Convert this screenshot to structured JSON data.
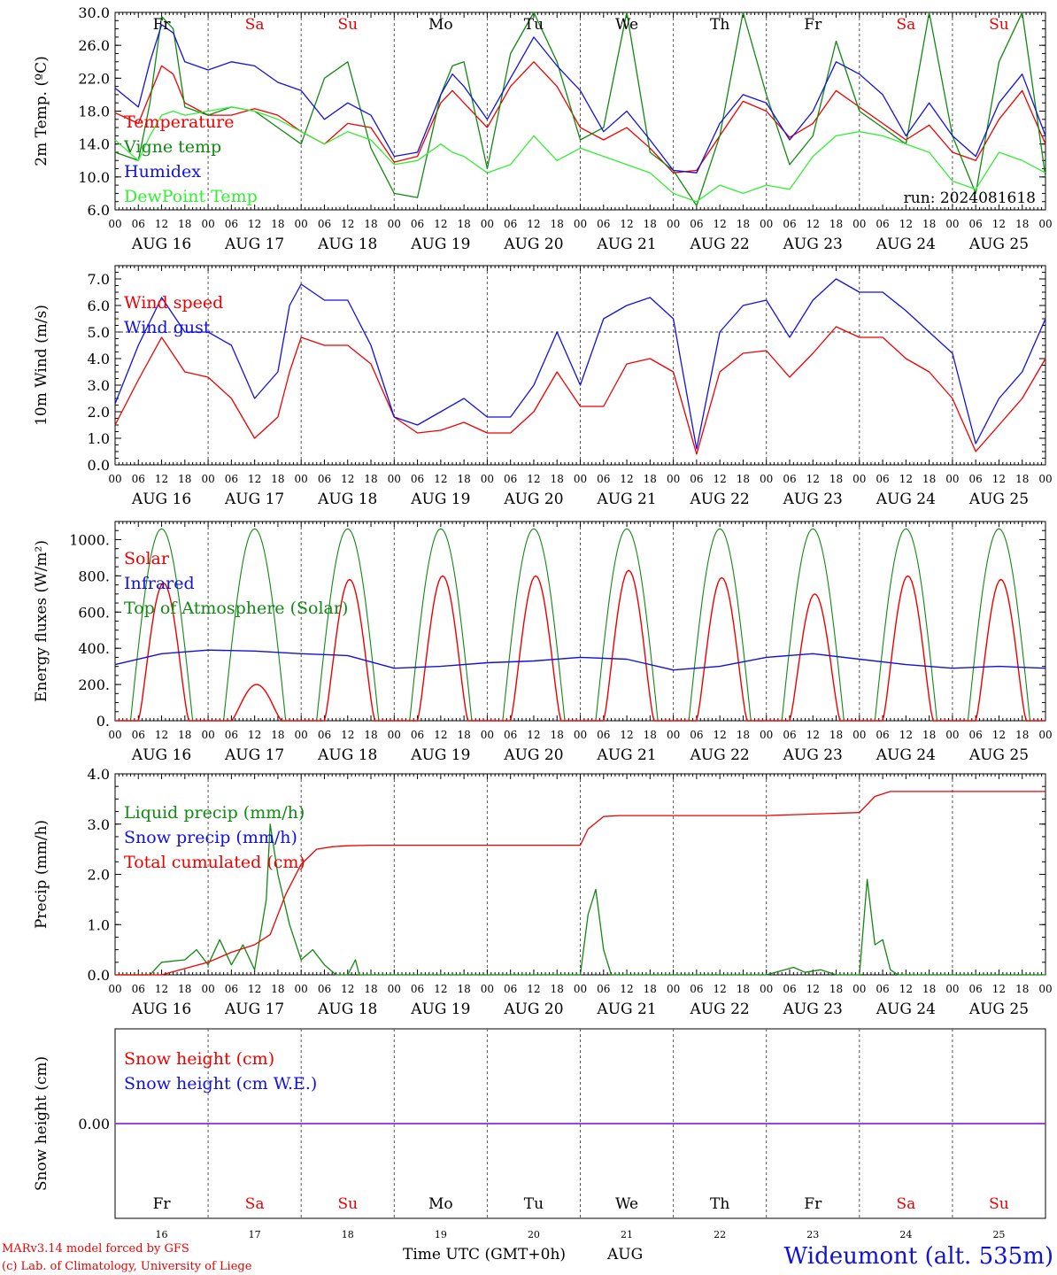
{
  "header": {
    "footer_left_1": "MARv3.14 model forced by GFS",
    "footer_left_2": "(c) Lab. of Climatology, University of Liege",
    "xlabel": "Time UTC (GMT+0h)",
    "month": "AUG",
    "station": "Wideumont (alt. 535m)",
    "run_label": "run: 2024081618"
  },
  "colors": {
    "red": "#ee0000",
    "green": "#118811",
    "blue": "#1111dd",
    "lightgreen": "#33ee33",
    "purple": "#8a2be2",
    "axis": "#000000"
  },
  "days": [
    "Fr",
    "Sa",
    "Su",
    "Mo",
    "Tu",
    "We",
    "Th",
    "Fr",
    "Sa",
    "Su"
  ],
  "weekend_flags": [
    false,
    true,
    true,
    false,
    false,
    false,
    false,
    false,
    true,
    true
  ],
  "day_numbers": [
    "16",
    "17",
    "18",
    "19",
    "20",
    "21",
    "22",
    "23",
    "24",
    "25"
  ],
  "date_labels": [
    "AUG 16",
    "AUG 17",
    "AUG 18",
    "AUG 19",
    "AUG 20",
    "AUG 21",
    "AUG 22",
    "AUG 23",
    "AUG 24",
    "AUG 25"
  ],
  "hour_labels": [
    "00",
    "06",
    "12",
    "18"
  ],
  "chart_data": [
    {
      "type": "line",
      "id": "temp",
      "ylabel": "2m Temp. (ºC)",
      "ylim": [
        6.0,
        30.0
      ],
      "yticks": [
        "6.0",
        "10.0",
        "14.0",
        "18.0",
        "22.0",
        "26.0",
        "30.0"
      ],
      "ytick_values": [
        6,
        10,
        14,
        18,
        22,
        26,
        30
      ],
      "x_unit": "hours since AUG 16 00 UTC",
      "series": [
        {
          "name": "Temperature",
          "color": "red",
          "x": [
            0,
            6,
            9,
            12,
            15,
            18,
            24,
            30,
            36,
            42,
            48,
            54,
            60,
            66,
            72,
            78,
            84,
            87,
            90,
            96,
            102,
            108,
            114,
            120,
            126,
            132,
            138,
            144,
            150,
            156,
            162,
            168,
            174,
            180,
            186,
            192,
            198,
            204,
            210,
            216,
            222,
            228,
            234,
            240
          ],
          "y": [
            17.8,
            16.5,
            20.0,
            23.5,
            22.5,
            19.0,
            17.5,
            17.5,
            18.3,
            17.5,
            15.5,
            14.0,
            16.5,
            16.0,
            11.8,
            12.5,
            19.0,
            20.5,
            19.0,
            16.0,
            21.0,
            24.0,
            21.0,
            16.0,
            14.5,
            16.0,
            13.5,
            10.5,
            10.8,
            15.0,
            19.2,
            18.0,
            14.8,
            16.5,
            20.5,
            18.5,
            16.5,
            14.5,
            16.3,
            13.0,
            12.0,
            17.0,
            20.5,
            14.0
          ]
        },
        {
          "name": "Vigne temp",
          "color": "green",
          "x": [
            0,
            6,
            9,
            12,
            15,
            18,
            24,
            30,
            36,
            42,
            48,
            54,
            60,
            66,
            72,
            78,
            84,
            87,
            90,
            96,
            102,
            108,
            114,
            120,
            126,
            132,
            138,
            144,
            150,
            156,
            162,
            168,
            174,
            180,
            186,
            192,
            198,
            204,
            210,
            216,
            222,
            228,
            234,
            240
          ],
          "y": [
            13.0,
            12.0,
            19.0,
            29.5,
            28.0,
            18.5,
            17.5,
            18.5,
            18.0,
            16.0,
            14.0,
            22.0,
            24.0,
            13.5,
            8.0,
            7.5,
            20.0,
            23.5,
            24.0,
            11.0,
            25.0,
            30.0,
            24.0,
            14.5,
            16.0,
            30.0,
            13.0,
            10.8,
            6.5,
            15.0,
            30.0,
            20.0,
            11.5,
            15.0,
            26.5,
            18.0,
            16.0,
            14.0,
            30.0,
            15.0,
            8.0,
            24.0,
            30.0,
            10.0
          ]
        },
        {
          "name": "Humidex",
          "color": "blue",
          "x": [
            0,
            6,
            9,
            12,
            15,
            18,
            24,
            30,
            36,
            42,
            48,
            54,
            60,
            66,
            72,
            78,
            84,
            87,
            90,
            96,
            102,
            108,
            114,
            120,
            126,
            132,
            138,
            144,
            150,
            156,
            162,
            168,
            174,
            180,
            186,
            192,
            198,
            204,
            210,
            216,
            222,
            228,
            234,
            240
          ],
          "y": [
            20.8,
            18.5,
            24.0,
            28.5,
            27.5,
            24.0,
            23.0,
            24.0,
            23.5,
            21.5,
            20.5,
            17.0,
            19.0,
            17.5,
            12.5,
            13.0,
            20.0,
            22.5,
            21.0,
            17.0,
            22.0,
            27.0,
            23.5,
            20.5,
            15.5,
            18.0,
            14.5,
            10.8,
            10.5,
            16.5,
            20.0,
            19.0,
            14.5,
            18.0,
            24.0,
            22.5,
            20.0,
            15.0,
            19.0,
            15.0,
            12.5,
            19.0,
            22.5,
            15.0
          ]
        },
        {
          "name": "DewPoint Temp",
          "color": "lightgreen",
          "x": [
            0,
            6,
            9,
            12,
            15,
            18,
            24,
            30,
            36,
            42,
            48,
            54,
            60,
            66,
            72,
            78,
            84,
            87,
            90,
            96,
            102,
            108,
            114,
            120,
            126,
            132,
            138,
            144,
            150,
            156,
            162,
            168,
            174,
            180,
            186,
            192,
            198,
            204,
            210,
            216,
            222,
            228,
            234,
            240
          ],
          "y": [
            14.5,
            12.0,
            15.0,
            17.5,
            18.0,
            17.5,
            18.0,
            18.5,
            18.0,
            17.0,
            15.5,
            14.0,
            15.5,
            14.5,
            11.5,
            12.0,
            14.0,
            13.0,
            12.5,
            10.5,
            11.5,
            15.0,
            12.0,
            13.5,
            12.5,
            11.5,
            10.5,
            8.0,
            7.0,
            9.0,
            8.0,
            9.0,
            8.5,
            12.5,
            15.0,
            15.5,
            15.0,
            14.0,
            13.0,
            9.5,
            8.5,
            13.0,
            12.0,
            10.5
          ]
        }
      ]
    },
    {
      "type": "line",
      "id": "wind",
      "ylabel": "10m Wind (m/s)",
      "ylim": [
        0.0,
        7.5
      ],
      "yticks": [
        "0.0",
        "1.0",
        "2.0",
        "3.0",
        "4.0",
        "5.0",
        "6.0",
        "7.0"
      ],
      "ytick_values": [
        0,
        1,
        2,
        3,
        4,
        5,
        6,
        7
      ],
      "reference_line": 5.0,
      "x_unit": "hours since AUG 16 00 UTC",
      "series": [
        {
          "name": "Wind speed",
          "color": "red",
          "x": [
            0,
            6,
            12,
            18,
            24,
            30,
            36,
            42,
            45,
            48,
            54,
            60,
            66,
            72,
            78,
            84,
            90,
            96,
            102,
            108,
            114,
            120,
            126,
            132,
            138,
            144,
            150,
            156,
            162,
            168,
            174,
            180,
            186,
            192,
            198,
            204,
            210,
            216,
            222,
            228,
            234,
            240
          ],
          "y": [
            1.5,
            3.2,
            4.8,
            3.5,
            3.3,
            2.5,
            1.0,
            1.8,
            3.5,
            4.8,
            4.5,
            4.5,
            3.8,
            1.8,
            1.2,
            1.3,
            1.6,
            1.2,
            1.2,
            2.0,
            3.5,
            2.2,
            2.2,
            3.8,
            4.0,
            3.5,
            0.4,
            3.5,
            4.2,
            4.3,
            3.3,
            4.2,
            5.2,
            4.8,
            4.8,
            4.0,
            3.5,
            2.5,
            0.5,
            1.5,
            2.5,
            4.0
          ]
        },
        {
          "name": "Wind gust",
          "color": "blue",
          "x": [
            0,
            6,
            12,
            18,
            24,
            30,
            36,
            42,
            45,
            48,
            54,
            60,
            66,
            72,
            78,
            84,
            90,
            96,
            102,
            108,
            114,
            120,
            126,
            132,
            138,
            144,
            150,
            156,
            162,
            168,
            174,
            180,
            186,
            192,
            198,
            204,
            210,
            216,
            222,
            228,
            234,
            240
          ],
          "y": [
            2.3,
            4.5,
            6.3,
            5.0,
            5.0,
            4.5,
            2.5,
            3.5,
            6.0,
            6.8,
            6.2,
            6.2,
            4.5,
            1.8,
            1.5,
            2.0,
            2.5,
            1.8,
            1.8,
            3.0,
            5.0,
            3.0,
            5.5,
            6.0,
            6.3,
            5.5,
            0.6,
            5.0,
            6.0,
            6.2,
            4.8,
            6.2,
            7.0,
            6.5,
            6.5,
            5.8,
            5.0,
            4.2,
            0.8,
            2.5,
            3.5,
            5.5
          ]
        }
      ]
    },
    {
      "type": "line",
      "id": "energy",
      "ylabel": "Energy fluxes (W/m²)",
      "ylim": [
        0,
        1100
      ],
      "yticks": [
        "0.",
        "200.",
        "400.",
        "600.",
        "800.",
        "1000."
      ],
      "ytick_values": [
        0,
        200,
        400,
        600,
        800,
        1000
      ],
      "x_unit": "hours since AUG 16 00 UTC",
      "toa_solar": {
        "name": "Top of Atmosphere (Solar)",
        "color": "green",
        "peak": 1060,
        "sunrise_hour": 4,
        "sunset_hour": 20
      },
      "solar_peaks": [
        760,
        200,
        780,
        800,
        800,
        830,
        790,
        700,
        800,
        780
      ],
      "series": [
        {
          "name": "Solar",
          "color": "red"
        },
        {
          "name": "Infrared",
          "color": "blue",
          "x": [
            0,
            12,
            24,
            36,
            48,
            60,
            72,
            84,
            96,
            108,
            120,
            132,
            144,
            156,
            168,
            180,
            192,
            204,
            216,
            228,
            240
          ],
          "y": [
            310,
            370,
            390,
            385,
            370,
            360,
            290,
            300,
            320,
            330,
            350,
            340,
            280,
            300,
            350,
            370,
            340,
            310,
            290,
            300,
            290
          ]
        }
      ]
    },
    {
      "type": "line",
      "id": "precip",
      "ylabel": "Precip (mm/h)",
      "ylim": [
        0.0,
        4.0
      ],
      "yticks": [
        "0.0",
        "1.0",
        "2.0",
        "3.0",
        "4.0"
      ],
      "ytick_values": [
        0,
        1,
        2,
        3,
        4
      ],
      "x_unit": "hours since AUG 16 00 UTC",
      "series": [
        {
          "name": "Liquid precip (mm/h)",
          "color": "green",
          "x": [
            0,
            9,
            12,
            18,
            21,
            24,
            27,
            30,
            33,
            36,
            39,
            40,
            42,
            45,
            48,
            51,
            54,
            57,
            60,
            62,
            63,
            64,
            66,
            72,
            120,
            122,
            124,
            126,
            128,
            130,
            168,
            175,
            178,
            182,
            186,
            192,
            194,
            196,
            198,
            200,
            202,
            204,
            240
          ],
          "y": [
            0,
            0,
            0.25,
            0.3,
            0.5,
            0.2,
            0.7,
            0.2,
            0.6,
            0.1,
            1.5,
            3.0,
            2.0,
            1.0,
            0.3,
            0.5,
            0.2,
            0,
            0,
            0.3,
            0,
            0,
            0,
            0,
            0,
            1.2,
            1.7,
            0.5,
            0,
            0,
            0,
            0.15,
            0.05,
            0.1,
            0,
            0,
            1.9,
            0.6,
            0.7,
            0.1,
            0,
            0,
            0
          ]
        },
        {
          "name": "Snow precip (mm/h)",
          "color": "blue"
        },
        {
          "name": "Total cumulated (cm)",
          "color": "red",
          "x": [
            0,
            12,
            24,
            30,
            36,
            40,
            44,
            48,
            52,
            56,
            60,
            66,
            72,
            96,
            120,
            122,
            126,
            130,
            144,
            168,
            180,
            192,
            196,
            200,
            216,
            240
          ],
          "y": [
            0,
            0,
            0.25,
            0.45,
            0.6,
            0.8,
            1.6,
            2.2,
            2.5,
            2.55,
            2.57,
            2.58,
            2.58,
            2.58,
            2.58,
            2.9,
            3.15,
            3.17,
            3.17,
            3.17,
            3.2,
            3.23,
            3.55,
            3.65,
            3.65,
            3.65
          ]
        }
      ]
    },
    {
      "type": "line",
      "id": "snow",
      "ylabel": "Snow height (cm)",
      "ylim": [
        -1,
        1
      ],
      "yticks": [
        "0.00"
      ],
      "ytick_values": [
        0
      ],
      "x_unit": "hours since AUG 16 00 UTC",
      "series": [
        {
          "name": "Snow height (cm)",
          "color": "red",
          "x": [
            0,
            240
          ],
          "y": [
            0,
            0
          ]
        },
        {
          "name": "Snow height (cm W.E.)",
          "color": "blue",
          "x": [
            0,
            240
          ],
          "y": [
            0,
            0
          ]
        }
      ]
    }
  ]
}
